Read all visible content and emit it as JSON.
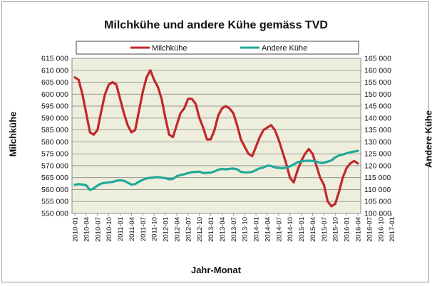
{
  "chart_data": {
    "type": "line",
    "title": "Milchkühe und andere Kühe gemäss TVD",
    "xlabel": "Jahr-Monat",
    "ylabel_left": "Milchkühe",
    "ylabel_right": "Andere Kühe",
    "legend_position": "top",
    "grid": true,
    "ylim_left": [
      550000,
      615000
    ],
    "ylim_right": [
      100000,
      165000
    ],
    "yticks_left": [
      "550 000",
      "555 000",
      "560 000",
      "565 000",
      "570 000",
      "575 000",
      "580 000",
      "585 000",
      "590 000",
      "595 000",
      "600 000",
      "605 000",
      "610 000",
      "615 000"
    ],
    "yticks_right": [
      "100 000",
      "105 000",
      "110 000",
      "115 000",
      "120 000",
      "125 000",
      "130 000",
      "135 000",
      "140 000",
      "145 000",
      "150 000",
      "155 000",
      "160 000",
      "165 000"
    ],
    "xtick_labels": [
      "2010-01",
      "2010-04",
      "2010-07",
      "2010-10",
      "2011-01",
      "2011-04",
      "2011-07",
      "2011-10",
      "2012-01",
      "2012-04",
      "2012-07",
      "2012-10",
      "2013-01",
      "2013-04",
      "2013-07",
      "2013-10",
      "2014-01",
      "2014-04",
      "2014-07",
      "2014-10",
      "2015-01",
      "2015-04",
      "2015-07",
      "2015-10",
      "2016-01",
      "2016-04",
      "2016-07",
      "2016-10",
      "2017-01"
    ],
    "series": [
      {
        "name": "Milchkühe",
        "axis": "left",
        "color": "#c0282a",
        "values": [
          607000,
          606000,
          600000,
          592000,
          584000,
          583000,
          585000,
          593000,
          600000,
          604000,
          605000,
          604000,
          598000,
          592000,
          587000,
          584000,
          585000,
          593000,
          601000,
          607000,
          610000,
          606000,
          603000,
          598000,
          590000,
          583000,
          582000,
          587000,
          592000,
          594000,
          598000,
          598000,
          596000,
          590000,
          586000,
          581000,
          581000,
          585000,
          591000,
          594000,
          595000,
          594000,
          592000,
          587000,
          581000,
          578000,
          575000,
          574000,
          578000,
          582000,
          585000,
          586000,
          587000,
          585000,
          581000,
          576000,
          571000,
          565000,
          563000,
          568000,
          572000,
          575000,
          577000,
          575000,
          570000,
          565000,
          562000,
          555000,
          553000,
          554000,
          559000,
          565000,
          569000,
          571000,
          572000,
          571000
        ]
      },
      {
        "name": "Andere Kühe",
        "axis": "right",
        "color": "#1fa89a",
        "values": [
          112000,
          112300,
          112100,
          111800,
          109800,
          110500,
          111700,
          112500,
          112800,
          113000,
          113200,
          113700,
          113900,
          113700,
          112900,
          112100,
          112300,
          113300,
          114100,
          114700,
          114900,
          115100,
          115200,
          115000,
          114800,
          114300,
          114500,
          115600,
          116100,
          116400,
          116900,
          117300,
          117400,
          117500,
          116900,
          117000,
          117100,
          117600,
          118300,
          118600,
          118500,
          118700,
          118800,
          118500,
          117400,
          117200,
          117200,
          117400,
          118200,
          118900,
          119300,
          120000,
          119900,
          119300,
          119100,
          118900,
          119200,
          119700,
          120500,
          121500,
          121800,
          122000,
          122100,
          122000,
          121700,
          121200,
          121300,
          121700,
          122200,
          123500,
          124300,
          124700,
          125200,
          125600,
          125900,
          126200
        ]
      }
    ]
  }
}
